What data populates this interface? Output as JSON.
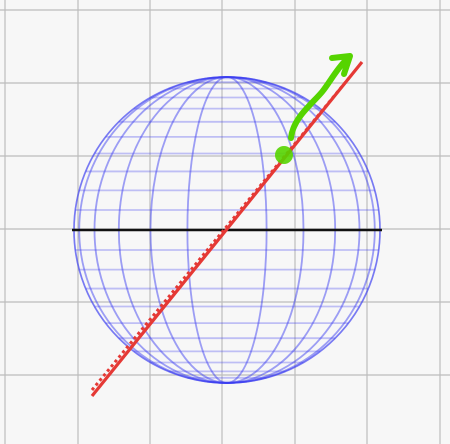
{
  "colors": {
    "background": "#f7f7f7",
    "grid_line": "#bdbdbd",
    "sphere_wireframe": "#3a3cf0",
    "equator_line": "#111111",
    "axis_solid": "#e53935",
    "axis_dotted": "#e53935",
    "intersection_point": "#55d400",
    "arrow": "#55d400"
  },
  "icons": {
    "sphere": "wireframe-sphere-icon",
    "arrow": "curved-arrow-icon"
  },
  "diagram": {
    "elements": [
      "grid",
      "wireframe-sphere",
      "equator-line",
      "solid-axis-line",
      "dotted-axis-line",
      "surface-point",
      "curved-arrow"
    ]
  }
}
